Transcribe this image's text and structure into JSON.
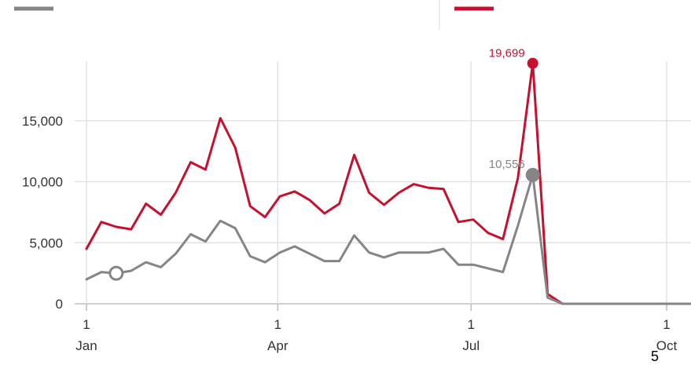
{
  "chart_data": {
    "type": "line",
    "title": "",
    "xlabel": "",
    "ylabel": "",
    "ylim": [
      0,
      20000
    ],
    "grid": true,
    "x_range": [
      "2022-01-01",
      "2022-10-31"
    ],
    "y_ticks": [
      0,
      5000,
      10000,
      15000
    ],
    "y_tick_labels": [
      "0",
      "5,000",
      "10,000",
      "15,000"
    ],
    "x_ticks": [
      {
        "date": "2022-01-01",
        "day": "1",
        "month": "Jan"
      },
      {
        "date": "2022-04-01",
        "day": "1",
        "month": "Apr"
      },
      {
        "date": "2022-07-01",
        "day": "1",
        "month": "Jul"
      },
      {
        "date": "2022-10-01",
        "day": "1",
        "month": "Oct"
      }
    ],
    "series": [
      {
        "color": "#c8102e",
        "points": [
          [
            "2022-01-01",
            4500
          ],
          [
            "2022-01-08",
            6700
          ],
          [
            "2022-01-15",
            6300
          ],
          [
            "2022-01-22",
            6100
          ],
          [
            "2022-01-29",
            8200
          ],
          [
            "2022-02-05",
            7300
          ],
          [
            "2022-02-12",
            9100
          ],
          [
            "2022-02-19",
            11600
          ],
          [
            "2022-02-26",
            11000
          ],
          [
            "2022-03-05",
            15200
          ],
          [
            "2022-03-12",
            12800
          ],
          [
            "2022-03-19",
            8000
          ],
          [
            "2022-03-26",
            7100
          ],
          [
            "2022-04-02",
            8800
          ],
          [
            "2022-04-09",
            9200
          ],
          [
            "2022-04-16",
            8500
          ],
          [
            "2022-04-23",
            7400
          ],
          [
            "2022-04-30",
            8200
          ],
          [
            "2022-05-07",
            12200
          ],
          [
            "2022-05-14",
            9100
          ],
          [
            "2022-05-21",
            8100
          ],
          [
            "2022-05-28",
            9100
          ],
          [
            "2022-06-04",
            9800
          ],
          [
            "2022-06-11",
            9500
          ],
          [
            "2022-06-18",
            9400
          ],
          [
            "2022-06-25",
            6700
          ],
          [
            "2022-07-02",
            6900
          ],
          [
            "2022-07-09",
            5800
          ],
          [
            "2022-07-16",
            5300
          ],
          [
            "2022-07-23",
            10300
          ],
          [
            "2022-07-30",
            19699
          ],
          [
            "2022-08-06",
            800
          ],
          [
            "2022-08-13",
            0
          ],
          [
            "2022-08-20",
            0
          ],
          [
            "2022-08-27",
            0
          ],
          [
            "2022-09-03",
            0
          ],
          [
            "2022-09-10",
            0
          ],
          [
            "2022-09-17",
            0
          ],
          [
            "2022-09-24",
            0
          ],
          [
            "2022-10-01",
            0
          ],
          [
            "2022-10-08",
            0
          ],
          [
            "2022-10-15",
            0
          ]
        ],
        "peak": {
          "date": "2022-07-30",
          "value": 19699,
          "label": "19,699"
        }
      },
      {
        "color": "#858585",
        "points": [
          [
            "2022-01-01",
            2000
          ],
          [
            "2022-01-08",
            2600
          ],
          [
            "2022-01-15",
            2500
          ],
          [
            "2022-01-22",
            2700
          ],
          [
            "2022-01-29",
            3400
          ],
          [
            "2022-02-05",
            3000
          ],
          [
            "2022-02-12",
            4100
          ],
          [
            "2022-02-19",
            5700
          ],
          [
            "2022-02-26",
            5100
          ],
          [
            "2022-03-05",
            6800
          ],
          [
            "2022-03-12",
            6200
          ],
          [
            "2022-03-19",
            3900
          ],
          [
            "2022-03-26",
            3400
          ],
          [
            "2022-04-02",
            4200
          ],
          [
            "2022-04-09",
            4700
          ],
          [
            "2022-04-16",
            4100
          ],
          [
            "2022-04-23",
            3500
          ],
          [
            "2022-04-30",
            3500
          ],
          [
            "2022-05-07",
            5600
          ],
          [
            "2022-05-14",
            4200
          ],
          [
            "2022-05-21",
            3800
          ],
          [
            "2022-05-28",
            4200
          ],
          [
            "2022-06-04",
            4200
          ],
          [
            "2022-06-11",
            4200
          ],
          [
            "2022-06-18",
            4500
          ],
          [
            "2022-06-25",
            3200
          ],
          [
            "2022-07-02",
            3200
          ],
          [
            "2022-07-09",
            2900
          ],
          [
            "2022-07-16",
            2600
          ],
          [
            "2022-07-23",
            6400
          ],
          [
            "2022-07-30",
            10556
          ],
          [
            "2022-08-06",
            500
          ],
          [
            "2022-08-13",
            0
          ],
          [
            "2022-08-20",
            0
          ],
          [
            "2022-08-27",
            0
          ],
          [
            "2022-09-03",
            0
          ],
          [
            "2022-09-10",
            0
          ],
          [
            "2022-09-17",
            0
          ],
          [
            "2022-09-24",
            0
          ],
          [
            "2022-10-01",
            0
          ],
          [
            "2022-10-08",
            0
          ],
          [
            "2022-10-15",
            0
          ]
        ],
        "peak": {
          "date": "2022-07-30",
          "value": 10556,
          "label": "10,556"
        },
        "marker_open": {
          "date": "2022-01-15",
          "value": 2500
        }
      }
    ],
    "legend": [
      {
        "color": "#858585"
      },
      {
        "color": "#c8102e"
      }
    ]
  },
  "corner_text": "5"
}
